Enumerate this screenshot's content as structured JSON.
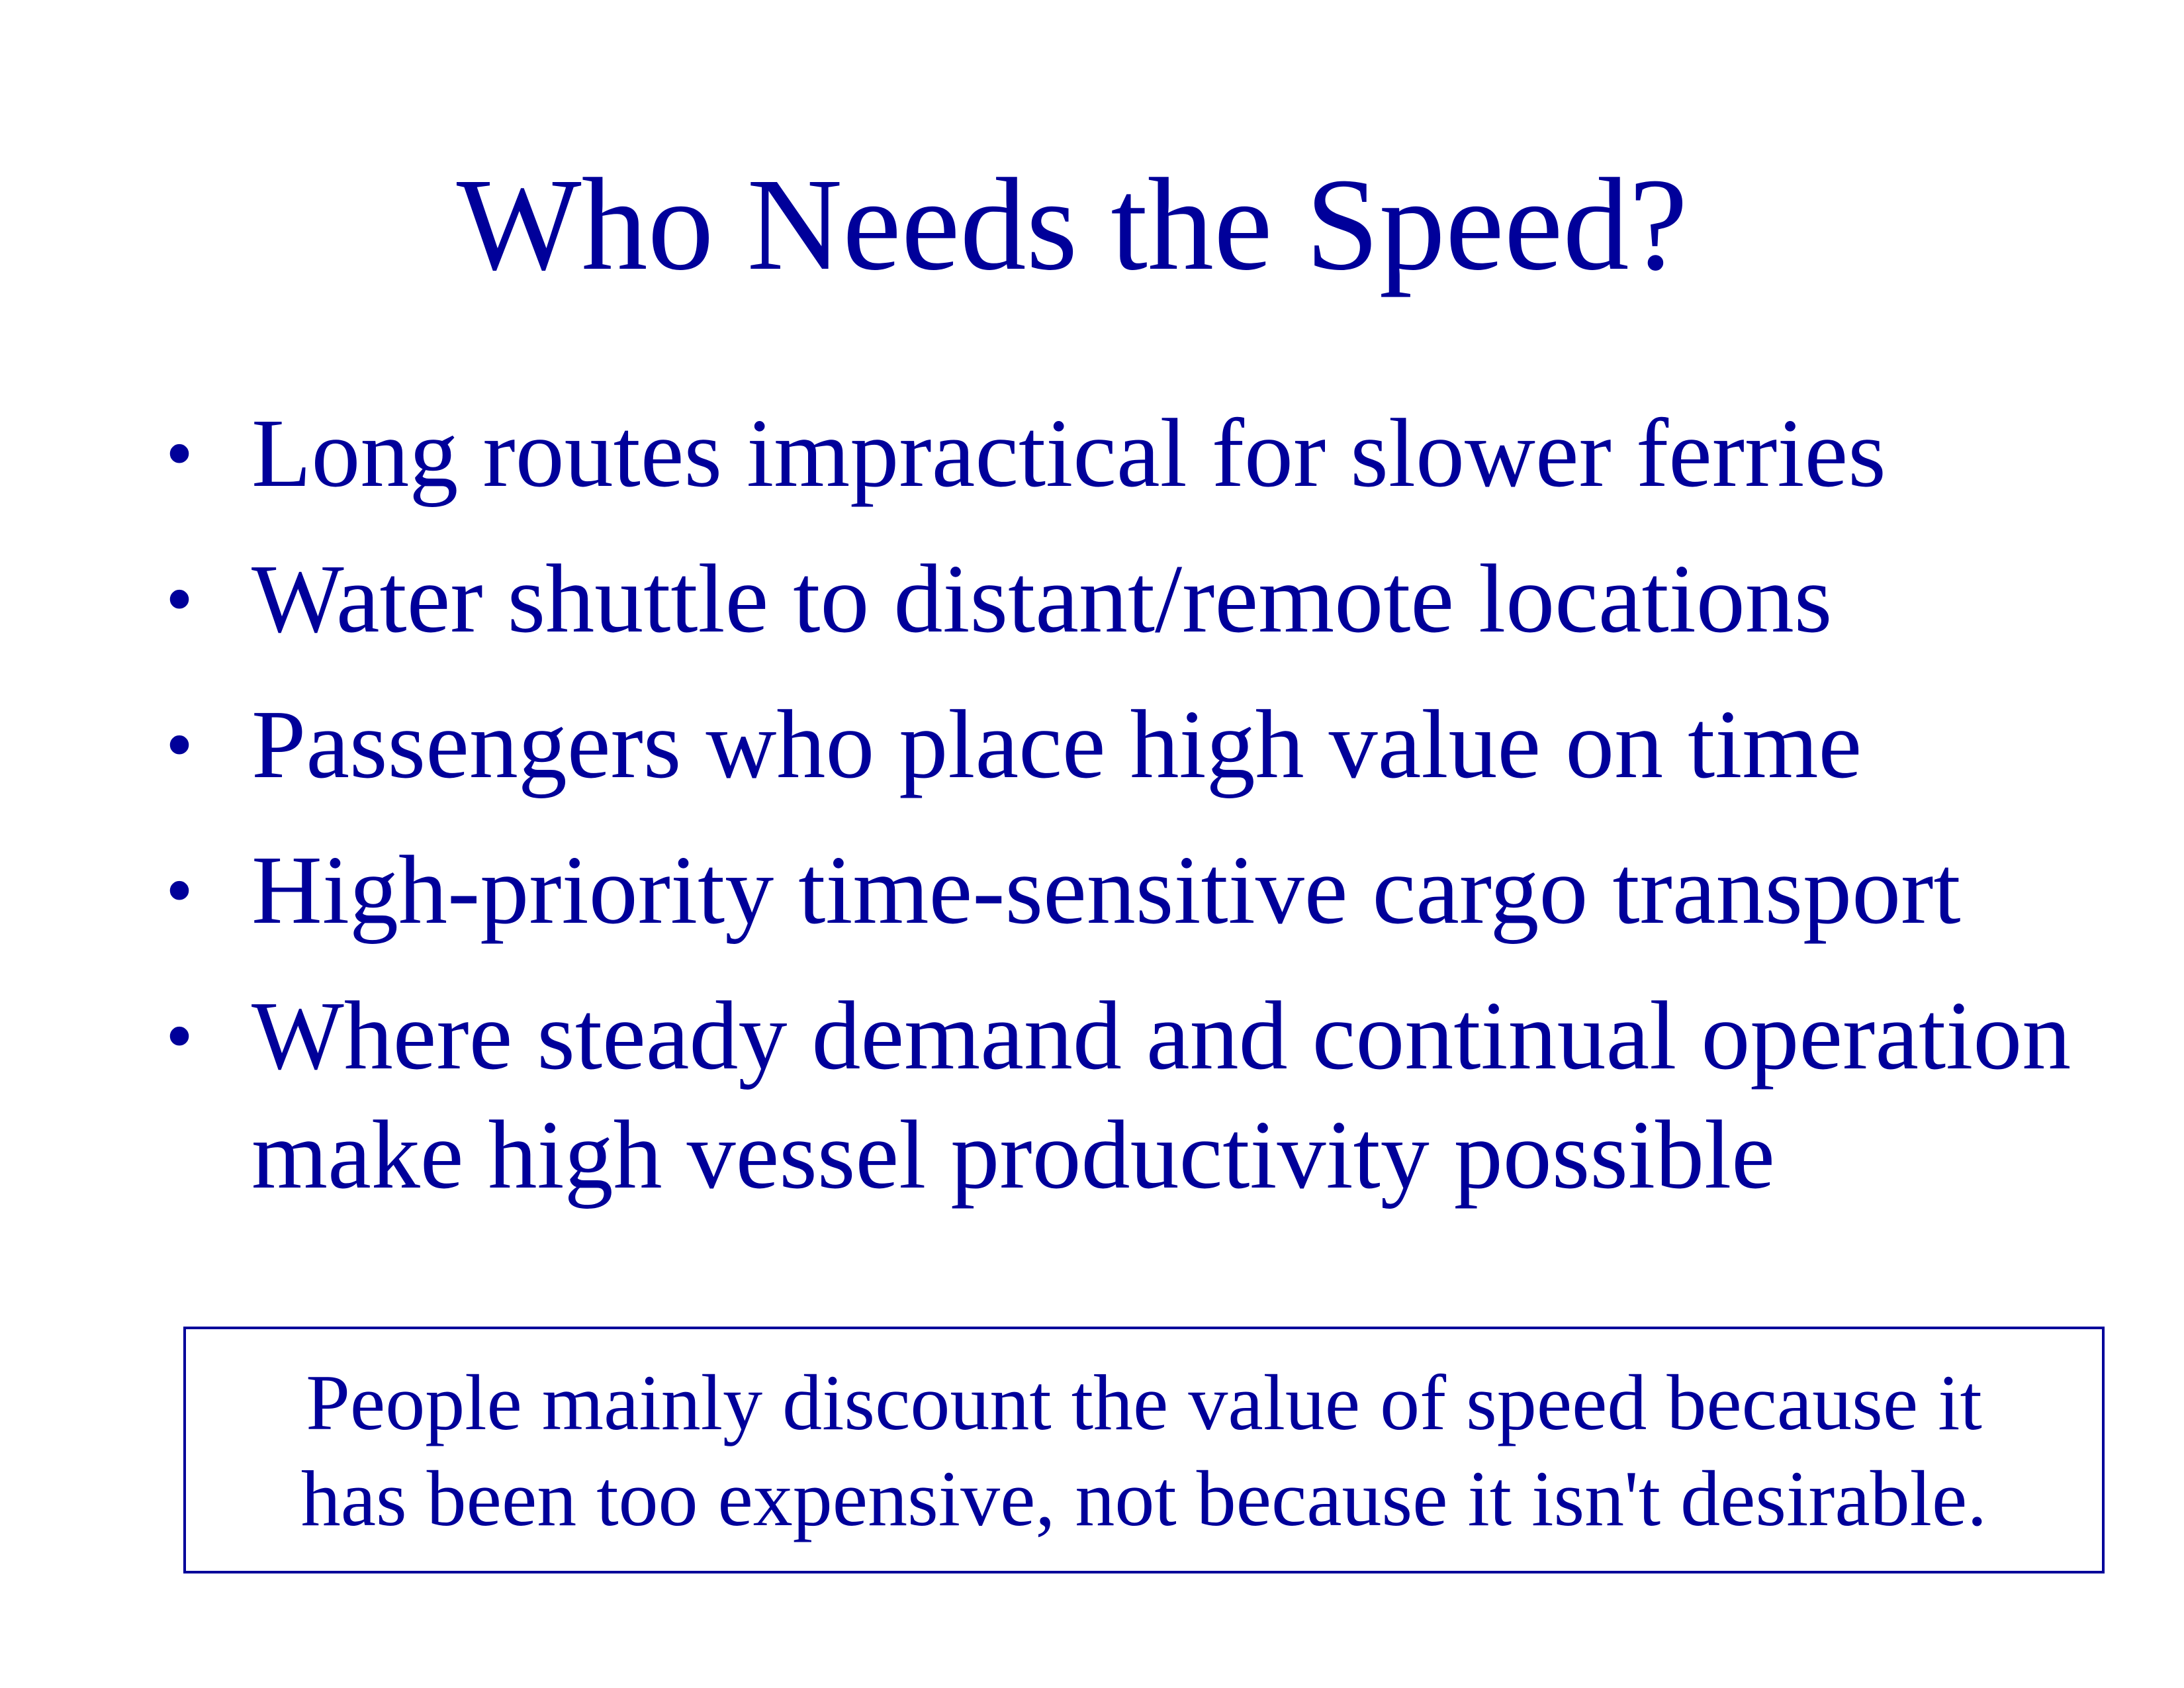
{
  "slide": {
    "title": "Who Needs the Speed?",
    "bullet_glyph": "•",
    "bullets": [
      {
        "text": "Long routes impractical for slower ferries"
      },
      {
        "text": "Water shuttle to distant/remote locations"
      },
      {
        "text": "Passengers who place high value on time"
      },
      {
        "text": "High-priority time-sensitive cargo transport"
      },
      {
        "text": "Where steady demand and continual operation make high vessel productivity possible"
      }
    ],
    "callout": "People mainly discount the value of speed because it has been too expensive, not because it isn't desirable.",
    "colors": {
      "text": "#00009A",
      "background": "#FFFFFF",
      "box_border": "#00009A"
    }
  }
}
